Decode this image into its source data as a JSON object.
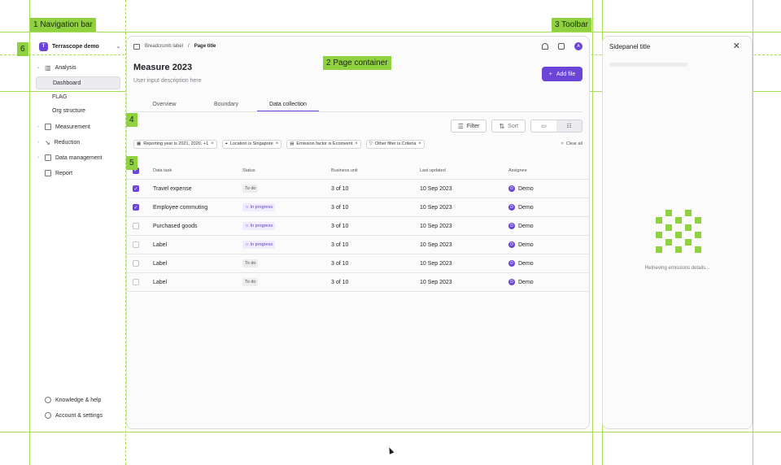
{
  "annotations": {
    "nav_bar": "1 Navigation bar",
    "page_container": "2 Page container",
    "toolbar": "3 Toolbar",
    "filters_num": "4",
    "table_num": "5",
    "workspace_num": "6"
  },
  "colors": {
    "accent": "#6a45d8",
    "guide": "#a6dd5a",
    "tag": "#8fd13f"
  },
  "sidebar": {
    "workspace": {
      "avatar": "T",
      "name": "Terrascope demo",
      "icon": "chevron-down-icon"
    },
    "items": [
      {
        "label": "Analysis",
        "icon": "chart-icon",
        "expanded": true
      },
      {
        "label": "Dashboard",
        "active": true
      },
      {
        "label": "FLAG"
      },
      {
        "label": "Org structure"
      },
      {
        "label": "Measurement",
        "icon": "calculator-icon"
      },
      {
        "label": "Reduction",
        "icon": "arrow-down-right-icon"
      },
      {
        "label": "Data management",
        "icon": "database-icon"
      },
      {
        "label": "Report",
        "icon": "document-icon"
      }
    ],
    "footer": [
      {
        "label": "Knowledge & help",
        "icon": "help-icon"
      },
      {
        "label": "Account & settings",
        "icon": "settings-icon"
      }
    ]
  },
  "topbar": {
    "breadcrumb": "Breadcrumb label",
    "separator": "/",
    "current": "Page title",
    "avatar": "A"
  },
  "page": {
    "title": "Measure 2023",
    "description": "User input description here",
    "add_button": "Add file",
    "add_glyph": "+"
  },
  "tabs": [
    {
      "label": "Overview"
    },
    {
      "label": "Boundary"
    },
    {
      "label": "Data collection",
      "active": true
    }
  ],
  "actions": {
    "filter": "Filter",
    "sort": "Sort"
  },
  "filters": [
    {
      "label": "Reporting year is 2021, 2020, +1",
      "icon": "calendar-icon"
    },
    {
      "label": "Location is Singapore",
      "icon": "pin-icon"
    },
    {
      "label": "Emission factor is Ecoinvent",
      "icon": "database-icon"
    },
    {
      "label": "Other filter is Criteria",
      "icon": "filter-icon"
    }
  ],
  "clear_all": "Clear all",
  "table": {
    "columns": [
      "Data task",
      "Status",
      "Business unit",
      "Last updated",
      "Assignee"
    ],
    "rows": [
      {
        "checked": true,
        "task": "Travel expense",
        "status": "To do",
        "status_type": "todo",
        "unit": "3 of 10",
        "updated": "10 Sep 2023",
        "assignee": "Demo",
        "initial": "D"
      },
      {
        "checked": true,
        "task": "Employee commuting",
        "status": "In progress",
        "status_type": "prog",
        "unit": "3 of 10",
        "updated": "10 Sep 2023",
        "assignee": "Demo",
        "initial": "D"
      },
      {
        "checked": false,
        "task": "Purchased goods",
        "status": "In progress",
        "status_type": "prog",
        "unit": "3 of 10",
        "updated": "10 Sep 2023",
        "assignee": "Demo",
        "initial": "D"
      },
      {
        "checked": false,
        "task": "Label",
        "status": "In progress",
        "status_type": "prog",
        "unit": "3 of 10",
        "updated": "10 Sep 2023",
        "assignee": "Demo",
        "initial": "D"
      },
      {
        "checked": false,
        "task": "Label",
        "status": "To do",
        "status_type": "todo",
        "unit": "3 of 10",
        "updated": "10 Sep 2023",
        "assignee": "Demo",
        "initial": "D"
      },
      {
        "checked": false,
        "task": "Label",
        "status": "To do",
        "status_type": "todo",
        "unit": "3 of 10",
        "updated": "10 Sep 2023",
        "assignee": "Demo",
        "initial": "D"
      }
    ]
  },
  "sidepanel": {
    "title": "Sidepanel title",
    "close": "✕",
    "message": "Retrieving emissions details..."
  }
}
